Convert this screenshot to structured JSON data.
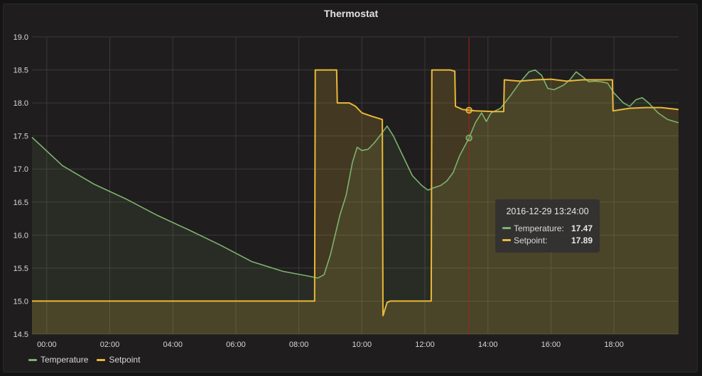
{
  "chart_data": {
    "type": "area",
    "title": "Thermostat",
    "ylim": [
      14.5,
      19.0
    ],
    "yticks": [
      14.5,
      15.0,
      15.5,
      16.0,
      16.5,
      17.0,
      17.5,
      18.0,
      18.5,
      19.0
    ],
    "xlim_hours": [
      -0.47,
      20.05
    ],
    "xticks": [
      "00:00",
      "02:00",
      "04:00",
      "06:00",
      "08:00",
      "10:00",
      "12:00",
      "14:00",
      "16:00",
      "18:00"
    ],
    "grid": true,
    "legend": "bottom-left",
    "series": [
      {
        "name": "Temperature",
        "color": "#7eb26d",
        "points": [
          [
            -0.47,
            17.48
          ],
          [
            0.5,
            17.05
          ],
          [
            1.5,
            16.77
          ],
          [
            2.5,
            16.55
          ],
          [
            3.5,
            16.3
          ],
          [
            4.5,
            16.08
          ],
          [
            5.5,
            15.85
          ],
          [
            6.5,
            15.6
          ],
          [
            7.5,
            15.45
          ],
          [
            8.3,
            15.38
          ],
          [
            8.6,
            15.35
          ],
          [
            8.8,
            15.4
          ],
          [
            9.0,
            15.7
          ],
          [
            9.3,
            16.3
          ],
          [
            9.5,
            16.6
          ],
          [
            9.7,
            17.1
          ],
          [
            9.85,
            17.33
          ],
          [
            10.0,
            17.28
          ],
          [
            10.2,
            17.3
          ],
          [
            10.4,
            17.4
          ],
          [
            10.6,
            17.52
          ],
          [
            10.8,
            17.65
          ],
          [
            11.0,
            17.5
          ],
          [
            11.3,
            17.2
          ],
          [
            11.6,
            16.9
          ],
          [
            11.9,
            16.75
          ],
          [
            12.1,
            16.68
          ],
          [
            12.3,
            16.72
          ],
          [
            12.5,
            16.75
          ],
          [
            12.7,
            16.82
          ],
          [
            12.9,
            16.95
          ],
          [
            13.1,
            17.2
          ],
          [
            13.4,
            17.47
          ],
          [
            13.6,
            17.7
          ],
          [
            13.8,
            17.85
          ],
          [
            13.95,
            17.72
          ],
          [
            14.1,
            17.85
          ],
          [
            14.4,
            17.92
          ],
          [
            14.7,
            18.1
          ],
          [
            15.0,
            18.3
          ],
          [
            15.3,
            18.47
          ],
          [
            15.5,
            18.5
          ],
          [
            15.7,
            18.42
          ],
          [
            15.9,
            18.22
          ],
          [
            16.1,
            18.2
          ],
          [
            16.4,
            18.27
          ],
          [
            16.6,
            18.35
          ],
          [
            16.8,
            18.47
          ],
          [
            17.0,
            18.4
          ],
          [
            17.2,
            18.32
          ],
          [
            17.4,
            18.33
          ],
          [
            17.6,
            18.32
          ],
          [
            17.8,
            18.3
          ],
          [
            18.0,
            18.15
          ],
          [
            18.3,
            18.0
          ],
          [
            18.5,
            17.95
          ],
          [
            18.7,
            18.05
          ],
          [
            18.9,
            18.08
          ],
          [
            19.1,
            18.0
          ],
          [
            19.4,
            17.85
          ],
          [
            19.7,
            17.75
          ],
          [
            20.05,
            17.7
          ]
        ]
      },
      {
        "name": "Setpoint",
        "color": "#eab839",
        "points": [
          [
            -0.47,
            15.0
          ],
          [
            8.5,
            15.0
          ],
          [
            8.52,
            18.5
          ],
          [
            9.2,
            18.5
          ],
          [
            9.22,
            18.0
          ],
          [
            9.6,
            18.0
          ],
          [
            9.8,
            17.95
          ],
          [
            10.0,
            17.85
          ],
          [
            10.3,
            17.8
          ],
          [
            10.65,
            17.75
          ],
          [
            10.67,
            14.78
          ],
          [
            10.8,
            14.98
          ],
          [
            10.9,
            15.0
          ],
          [
            12.2,
            15.0
          ],
          [
            12.22,
            18.5
          ],
          [
            12.8,
            18.5
          ],
          [
            12.95,
            18.48
          ],
          [
            12.97,
            17.95
          ],
          [
            13.2,
            17.9
          ],
          [
            13.6,
            17.88
          ],
          [
            14.2,
            17.87
          ],
          [
            14.5,
            17.87
          ],
          [
            14.52,
            18.35
          ],
          [
            15.0,
            18.33
          ],
          [
            15.5,
            18.35
          ],
          [
            16.0,
            18.36
          ],
          [
            16.5,
            18.33
          ],
          [
            17.0,
            18.35
          ],
          [
            17.5,
            18.35
          ],
          [
            17.95,
            18.35
          ],
          [
            17.97,
            17.88
          ],
          [
            18.5,
            17.92
          ],
          [
            19.0,
            17.93
          ],
          [
            19.5,
            17.93
          ],
          [
            20.05,
            17.9
          ]
        ]
      }
    ],
    "crosshair_hour": 13.4
  },
  "tooltip": {
    "time": "2016-12-29 13:24:00",
    "rows": [
      {
        "label": "Temperature:",
        "value": "17.47",
        "color": "#7eb26d"
      },
      {
        "label": "Setpoint:",
        "value": "17.89",
        "color": "#eab839"
      }
    ]
  },
  "legend": [
    {
      "label": "Temperature",
      "color": "#7eb26d"
    },
    {
      "label": "Setpoint",
      "color": "#eab839"
    }
  ]
}
